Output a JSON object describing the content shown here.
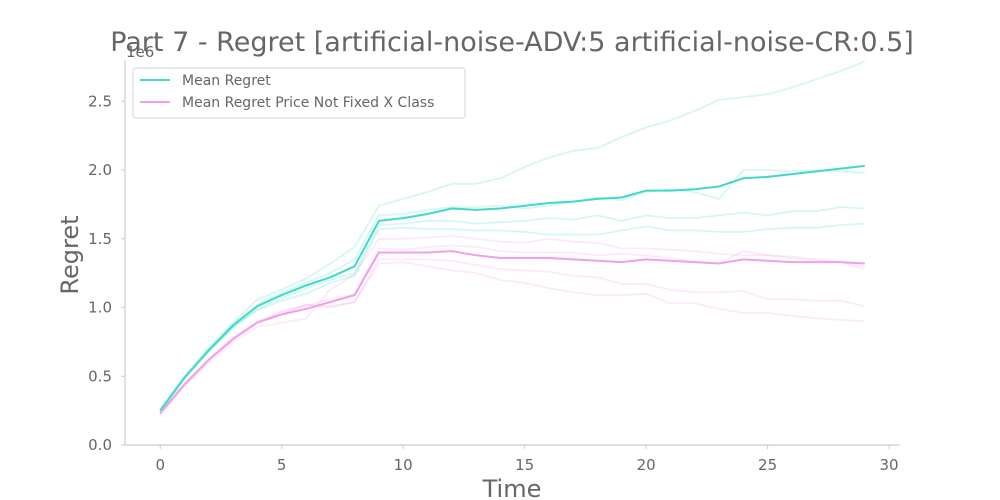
{
  "chart_data": {
    "type": "line",
    "title": "Part 7 - Regret [artificial-noise-ADV:5 artificial-noise-CR:0.5]",
    "xlabel": "Time",
    "ylabel": "Regret",
    "y_scale_label": "1e6",
    "xlim": [
      -1.45,
      30.45
    ],
    "ylim": [
      0,
      2.8
    ],
    "x_ticks": [
      0,
      5,
      10,
      15,
      20,
      25,
      30
    ],
    "y_ticks": [
      0.0,
      0.5,
      1.0,
      1.5,
      2.0,
      2.5
    ],
    "y_tick_labels": [
      "0.0",
      "0.5",
      "1.0",
      "1.5",
      "2.0",
      "2.5"
    ],
    "grid": false,
    "legend_position": "top-left",
    "x": [
      0,
      1,
      2,
      3,
      4,
      5,
      6,
      7,
      8,
      9,
      10,
      11,
      12,
      13,
      14,
      15,
      16,
      17,
      18,
      19,
      20,
      21,
      22,
      23,
      24,
      25,
      26,
      27,
      28,
      29
    ],
    "series": [
      {
        "name": "Mean Regret",
        "color": "#40d9c8",
        "values": [
          0.25,
          0.49,
          0.69,
          0.87,
          1.01,
          1.09,
          1.16,
          1.22,
          1.3,
          1.63,
          1.65,
          1.68,
          1.72,
          1.71,
          1.72,
          1.74,
          1.76,
          1.77,
          1.79,
          1.8,
          1.85,
          1.85,
          1.86,
          1.88,
          1.94,
          1.95,
          1.97,
          1.99,
          2.01,
          2.03
        ]
      },
      {
        "name": "Mean Regret Price Not Fixed X Class",
        "color": "#f0a0e8",
        "values": [
          0.23,
          0.44,
          0.62,
          0.77,
          0.89,
          0.95,
          0.99,
          1.04,
          1.09,
          1.4,
          1.4,
          1.4,
          1.41,
          1.38,
          1.36,
          1.36,
          1.36,
          1.35,
          1.34,
          1.33,
          1.35,
          1.34,
          1.33,
          1.32,
          1.35,
          1.34,
          1.33,
          1.33,
          1.33,
          1.32
        ]
      }
    ],
    "individual_runs": [
      {
        "parent": "Mean Regret",
        "values": [
          0.26,
          0.5,
          0.71,
          0.89,
          1.06,
          1.13,
          1.21,
          1.32,
          1.44,
          1.74,
          1.79,
          1.84,
          1.9,
          1.9,
          1.94,
          2.02,
          2.09,
          2.14,
          2.16,
          2.24,
          2.31,
          2.36,
          2.43,
          2.51,
          2.53,
          2.55,
          2.6,
          2.66,
          2.72,
          2.79
        ]
      },
      {
        "parent": "Mean Regret",
        "values": [
          0.24,
          0.48,
          0.68,
          0.85,
          0.99,
          1.07,
          1.14,
          1.2,
          1.25,
          1.6,
          1.61,
          1.63,
          1.63,
          1.61,
          1.62,
          1.63,
          1.65,
          1.64,
          1.67,
          1.63,
          1.67,
          1.65,
          1.65,
          1.67,
          1.69,
          1.67,
          1.7,
          1.7,
          1.73,
          1.72
        ]
      },
      {
        "parent": "Mean Regret",
        "values": [
          0.25,
          0.49,
          0.68,
          0.86,
          0.98,
          1.05,
          1.1,
          1.18,
          1.23,
          1.57,
          1.58,
          1.57,
          1.57,
          1.56,
          1.56,
          1.55,
          1.53,
          1.53,
          1.53,
          1.56,
          1.59,
          1.56,
          1.56,
          1.55,
          1.55,
          1.57,
          1.58,
          1.58,
          1.6,
          1.61
        ]
      },
      {
        "parent": "Mean Regret",
        "values": [
          0.25,
          0.49,
          0.69,
          0.88,
          1.02,
          1.11,
          1.18,
          1.25,
          1.35,
          1.67,
          1.68,
          1.71,
          1.73,
          1.73,
          1.74,
          1.72,
          1.74,
          1.77,
          1.8,
          1.78,
          1.84,
          1.86,
          1.84,
          1.79,
          2.0,
          2.0,
          1.99,
          2.0,
          1.99,
          1.98
        ]
      },
      {
        "parent": "Mean Regret Price Not Fixed X Class",
        "values": [
          0.22,
          0.43,
          0.6,
          0.75,
          0.86,
          0.89,
          0.92,
          1.13,
          1.24,
          1.5,
          1.5,
          1.51,
          1.52,
          1.5,
          1.48,
          1.47,
          1.5,
          1.48,
          1.47,
          1.43,
          1.43,
          1.42,
          1.41,
          1.39,
          1.38,
          1.38,
          1.37,
          1.35,
          1.33,
          1.3
        ]
      },
      {
        "parent": "Mean Regret Price Not Fixed X Class",
        "values": [
          0.23,
          0.44,
          0.62,
          0.78,
          0.89,
          0.97,
          1.02,
          1.01,
          1.04,
          1.32,
          1.33,
          1.3,
          1.27,
          1.25,
          1.2,
          1.18,
          1.14,
          1.11,
          1.09,
          1.09,
          1.1,
          1.03,
          1.03,
          0.99,
          0.96,
          0.96,
          0.94,
          0.92,
          0.91,
          0.9
        ]
      },
      {
        "parent": "Mean Regret Price Not Fixed X Class",
        "values": [
          0.24,
          0.45,
          0.63,
          0.78,
          0.9,
          0.95,
          1.02,
          1.0,
          1.04,
          1.35,
          1.35,
          1.35,
          1.34,
          1.31,
          1.28,
          1.27,
          1.26,
          1.23,
          1.22,
          1.17,
          1.17,
          1.13,
          1.11,
          1.11,
          1.12,
          1.06,
          1.06,
          1.05,
          1.05,
          1.01
        ]
      },
      {
        "parent": "Mean Regret Price Not Fixed X Class",
        "values": [
          0.23,
          0.44,
          0.62,
          0.77,
          0.89,
          0.97,
          1.01,
          1.06,
          1.1,
          1.43,
          1.42,
          1.44,
          1.45,
          1.44,
          1.41,
          1.4,
          1.4,
          1.4,
          1.38,
          1.39,
          1.38,
          1.36,
          1.33,
          1.32,
          1.41,
          1.38,
          1.36,
          1.34,
          1.33,
          1.28
        ]
      }
    ]
  }
}
